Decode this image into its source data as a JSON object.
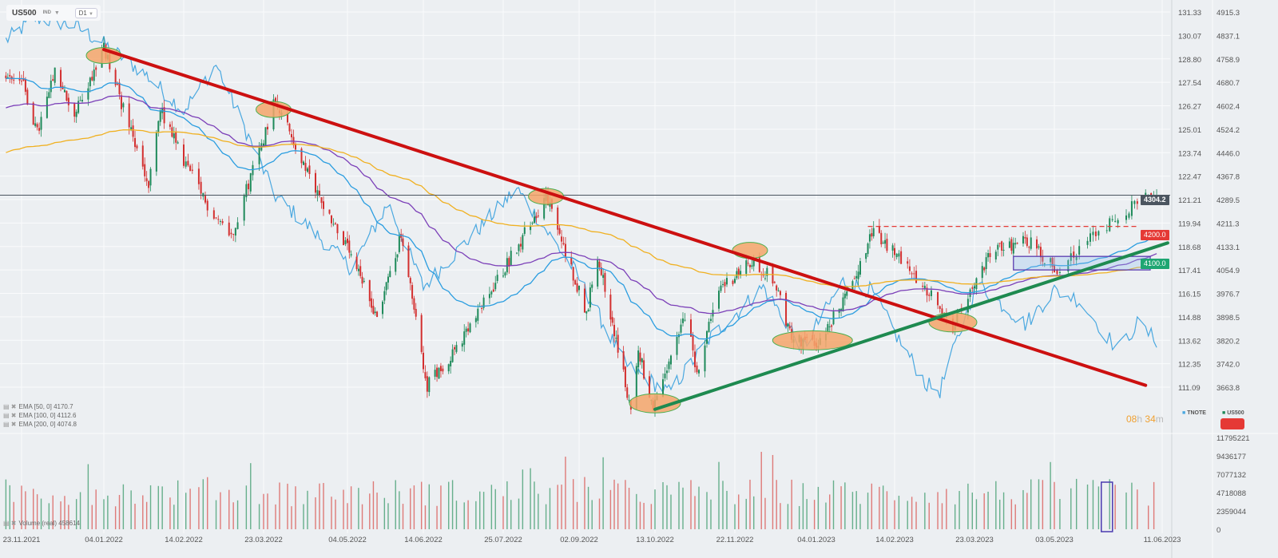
{
  "header": {
    "symbol": "US500",
    "type": "IND",
    "timeframe": "D1"
  },
  "legend": {
    "ema": [
      "EMA [50, 0] 4170.7",
      "EMA [100, 0] 4112.6",
      "EMA [200, 0] 4074.8"
    ],
    "volume": "Volume (real) 458614",
    "series": [
      "TNOTE",
      "US500"
    ]
  },
  "timer": {
    "hours": "08",
    "h": "h",
    "minutes": "34",
    "m": "m"
  },
  "badges": {
    "current": "4304.2",
    "resistance": "4200.0",
    "support": "4100.0"
  },
  "colors": {
    "up": "#1e8a5a",
    "down": "#d32f2f",
    "tnote": "#4aa8e0",
    "ema50": "#2a9de0",
    "ema100": "#7b3fb8",
    "ema200": "#f0b020",
    "downtrend": "#cc1010",
    "uptrend": "#1e8a50",
    "highlight": "#f4a46a"
  },
  "chart_data": {
    "type": "candlestick",
    "title": "",
    "x_ticks": [
      "23.11.2021",
      "04.01.2022",
      "14.02.2022",
      "23.03.2022",
      "04.05.2022",
      "14.06.2022",
      "25.07.2022",
      "02.09.2022",
      "13.10.2022",
      "22.11.2022",
      "04.01.2023",
      "14.02.2023",
      "23.03.2023",
      "03.05.2023",
      "11.06.2023"
    ],
    "y_ticks_tnote": [
      "131.33",
      "130.07",
      "128.80",
      "127.54",
      "126.27",
      "125.01",
      "123.74",
      "122.47",
      "121.21",
      "119.94",
      "118.68",
      "117.41",
      "116.15",
      "114.88",
      "113.62",
      "112.35",
      "111.09"
    ],
    "y_ticks_us500": [
      "4915.3",
      "4837.1",
      "4758.9",
      "4680.7",
      "4602.4",
      "4524.2",
      "4446.0",
      "4367.8",
      "4289.5",
      "4211.3",
      "4133.1",
      "4054.9",
      "3976.7",
      "3898.5",
      "3820.2",
      "3742.0",
      "3663.8"
    ],
    "ylim_us500": [
      3663.8,
      4915.3
    ],
    "ylim_tnote": [
      111.09,
      131.33
    ],
    "volume_ticks": [
      "11795221",
      "9436177",
      "7077132",
      "4718088",
      "2359044",
      "0"
    ],
    "volume_max": 11795221,
    "us500_closes": [
      [
        "2021-11-15",
        4700
      ],
      [
        "2021-11-23",
        4690
      ],
      [
        "2021-12-01",
        4510
      ],
      [
        "2021-12-10",
        4710
      ],
      [
        "2021-12-20",
        4570
      ],
      [
        "2022-01-04",
        4795
      ],
      [
        "2022-01-27",
        4330
      ],
      [
        "2022-02-02",
        4590
      ],
      [
        "2022-02-24",
        4280
      ],
      [
        "2022-03-08",
        4170
      ],
      [
        "2022-03-29",
        4630
      ],
      [
        "2022-04-12",
        4400
      ],
      [
        "2022-05-02",
        4150
      ],
      [
        "2022-05-20",
        3900
      ],
      [
        "2022-06-02",
        4170
      ],
      [
        "2022-06-16",
        3670
      ],
      [
        "2022-07-05",
        3830
      ],
      [
        "2022-08-16",
        4300
      ],
      [
        "2022-09-06",
        3910
      ],
      [
        "2022-09-12",
        4110
      ],
      [
        "2022-09-30",
        3585
      ],
      [
        "2022-10-04",
        3790
      ],
      [
        "2022-10-12",
        3580
      ],
      [
        "2022-10-28",
        3900
      ],
      [
        "2022-11-03",
        3720
      ],
      [
        "2022-11-15",
        4000
      ],
      [
        "2022-12-01",
        4080
      ],
      [
        "2022-12-13",
        4020
      ],
      [
        "2022-12-22",
        3820
      ],
      [
        "2023-01-05",
        3810
      ],
      [
        "2023-01-20",
        3970
      ],
      [
        "2023-02-02",
        4180
      ],
      [
        "2023-02-16",
        4100
      ],
      [
        "2023-03-09",
        3920
      ],
      [
        "2023-03-13",
        3860
      ],
      [
        "2023-03-31",
        4110
      ],
      [
        "2023-04-18",
        4160
      ],
      [
        "2023-05-04",
        4060
      ],
      [
        "2023-05-19",
        4190
      ],
      [
        "2023-06-02",
        4280
      ],
      [
        "2023-06-09",
        4304.2
      ]
    ],
    "tnote_closes": [
      [
        "2021-11-15",
        129.8
      ],
      [
        "2021-11-30",
        131.0
      ],
      [
        "2021-12-20",
        130.6
      ],
      [
        "2022-01-04",
        129.6
      ],
      [
        "2022-01-25",
        128.0
      ],
      [
        "2022-02-14",
        126.0
      ],
      [
        "2022-03-01",
        128.5
      ],
      [
        "2022-03-28",
        121.5
      ],
      [
        "2022-04-12",
        120.0
      ],
      [
        "2022-05-06",
        117.5
      ],
      [
        "2022-05-26",
        121.0
      ],
      [
        "2022-06-14",
        116.5
      ],
      [
        "2022-08-01",
        121.8
      ],
      [
        "2022-08-30",
        117.5
      ],
      [
        "2022-09-27",
        112.3
      ],
      [
        "2022-10-20",
        110.8
      ],
      [
        "2022-11-10",
        113.8
      ],
      [
        "2022-12-07",
        116.5
      ],
      [
        "2022-12-28",
        113.2
      ],
      [
        "2023-01-18",
        116.8
      ],
      [
        "2023-02-02",
        116.3
      ],
      [
        "2023-03-01",
        111.2
      ],
      [
        "2023-03-07",
        110.9
      ],
      [
        "2023-03-24",
        116.7
      ],
      [
        "2023-04-18",
        114.5
      ],
      [
        "2023-05-03",
        116.3
      ],
      [
        "2023-05-12",
        115.8
      ],
      [
        "2023-05-26",
        113.1
      ],
      [
        "2023-06-02",
        114.5
      ],
      [
        "2023-06-09",
        113.6
      ]
    ],
    "ema_periods": [
      50,
      100,
      200
    ],
    "annotations": {
      "downtrend_line": [
        [
          "2022-01-04",
          4790
        ],
        [
          "2023-06-05",
          3670
        ]
      ],
      "uptrend_line": [
        [
          "2022-10-13",
          3590
        ],
        [
          "2023-06-13",
          4145
        ]
      ],
      "resistance_level": {
        "from": "2023-01-31",
        "value": 4200
      },
      "support_box": {
        "from": "2023-04-12",
        "low": 4054.9,
        "high": 4100
      },
      "current_price_line": 4304.2,
      "highlights": [
        [
          "2022-01-04",
          4770
        ],
        [
          "2022-03-28",
          4590
        ],
        [
          "2022-08-16",
          4300
        ],
        [
          "2022-11-30",
          4120
        ],
        [
          "2022-10-13",
          3610
        ],
        [
          "2023-01-02",
          3820
        ],
        [
          "2023-03-13",
          3880
        ]
      ],
      "volume_highlight": "2023-05-22"
    }
  }
}
